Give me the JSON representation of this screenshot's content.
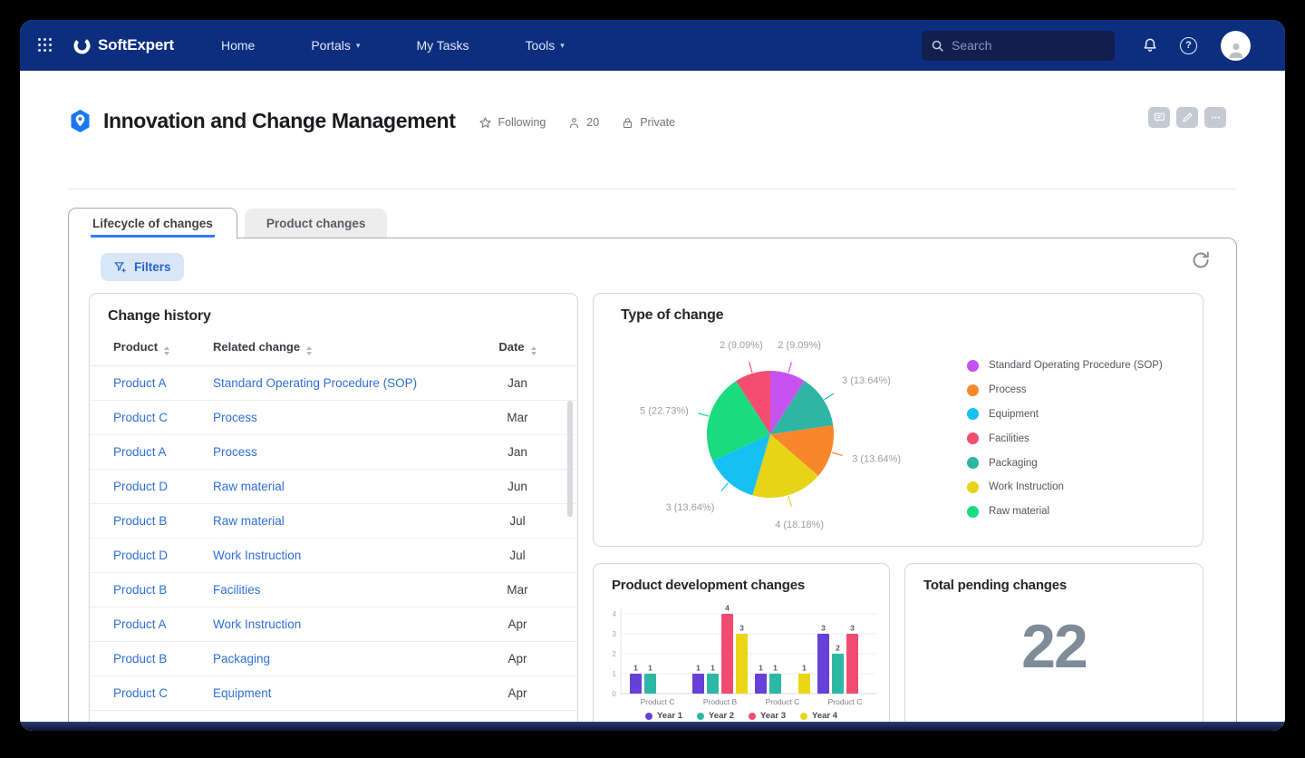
{
  "nav": {
    "brand": "SoftExpert",
    "items": [
      {
        "label": "Home",
        "dropdown": false
      },
      {
        "label": "Portals",
        "dropdown": true
      },
      {
        "label": "My Tasks",
        "dropdown": false
      },
      {
        "label": "Tools",
        "dropdown": true
      }
    ],
    "search_placeholder": "Search",
    "help_glyph": "?"
  },
  "header": {
    "title": "Innovation and Change Management",
    "following_label": "Following",
    "members_count": "20",
    "privacy_label": "Private"
  },
  "tabs": [
    {
      "label": "Lifecycle of changes",
      "active": true
    },
    {
      "label": "Product changes",
      "active": false
    }
  ],
  "toolbar": {
    "filters_label": "Filters"
  },
  "colors": {
    "navbar": "#0d2d7f",
    "link": "#2e6fd8",
    "tab_underline": "#2e7cf6",
    "filters_bg": "#d9e6f8",
    "filters_text": "#2563c9",
    "kpi_value": "#7f8b98"
  },
  "change_history": {
    "title": "Change history",
    "columns": [
      "Product",
      "Related change",
      "Date"
    ],
    "rows": [
      {
        "product": "Product A",
        "related_change": "Standard Operating Procedure (SOP)",
        "date": "Jan"
      },
      {
        "product": "Product C",
        "related_change": "Process",
        "date": "Mar"
      },
      {
        "product": "Product A",
        "related_change": "Process",
        "date": "Jan"
      },
      {
        "product": "Product D",
        "related_change": "Raw material",
        "date": "Jun"
      },
      {
        "product": "Product B",
        "related_change": "Raw material",
        "date": "Jul"
      },
      {
        "product": "Product D",
        "related_change": "Work Instruction",
        "date": "Jul"
      },
      {
        "product": "Product B",
        "related_change": "Facilities",
        "date": "Mar"
      },
      {
        "product": "Product A",
        "related_change": "Work Instruction",
        "date": "Apr"
      },
      {
        "product": "Product B",
        "related_change": "Packaging",
        "date": "Apr"
      },
      {
        "product": "Product C",
        "related_change": "Equipment",
        "date": "Apr"
      }
    ]
  },
  "chart_data": [
    {
      "type": "pie",
      "title": "Type of change",
      "total": 22,
      "slices": [
        {
          "label": "Standard Operating Procedure (SOP)",
          "value": 2,
          "display": "2 (9.09%)",
          "color": "#c653f0"
        },
        {
          "label": "Packaging",
          "value": 3,
          "display": "3 (13.64%)",
          "color": "#2eb5a3"
        },
        {
          "label": "Process",
          "value": 3,
          "display": "3 (13.64%)",
          "color": "#f8872b"
        },
        {
          "label": "Work Instruction",
          "value": 4,
          "display": "4 (18.18%)",
          "color": "#e7d417"
        },
        {
          "label": "Equipment",
          "value": 3,
          "display": "3 (13.64%)",
          "color": "#16c0f2"
        },
        {
          "label": "Raw material",
          "value": 5,
          "display": "5 (22.73%)",
          "color": "#1adb7d"
        },
        {
          "label": "Facilities",
          "value": 2,
          "display": "2 (9.09%)",
          "color": "#f44d72"
        }
      ],
      "legend": [
        {
          "label": "Standard Operating Procedure (SOP)",
          "color": "#c653f0"
        },
        {
          "label": "Process",
          "color": "#f8872b"
        },
        {
          "label": "Equipment",
          "color": "#16c0f2"
        },
        {
          "label": "Facilities",
          "color": "#f44d72"
        },
        {
          "label": "Packaging",
          "color": "#2eb5a3"
        },
        {
          "label": "Work Instruction",
          "color": "#e7d417"
        },
        {
          "label": "Raw material",
          "color": "#1adb7d"
        }
      ],
      "legend_position": "right"
    },
    {
      "type": "bar",
      "title": "Product development changes",
      "categories": [
        "Product C",
        "Product B",
        "Product C",
        "Product C"
      ],
      "series": [
        {
          "name": "Year 1",
          "color": "#6740d8",
          "values": [
            1,
            1,
            1,
            3
          ]
        },
        {
          "name": "Year 2",
          "color": "#2cb8a5",
          "values": [
            1,
            1,
            1,
            2
          ]
        },
        {
          "name": "Year 3",
          "color": "#f04b70",
          "values": [
            0,
            4,
            0,
            3
          ]
        },
        {
          "name": "Year 4",
          "color": "#ead616",
          "values": [
            0,
            3,
            1,
            0
          ]
        }
      ],
      "ylim": [
        0,
        4
      ],
      "yticks": [
        0,
        1,
        2,
        3,
        4
      ],
      "grid": true,
      "legend_position": "bottom"
    },
    {
      "type": "kpi",
      "title": "Total pending changes",
      "value": "22"
    }
  ]
}
